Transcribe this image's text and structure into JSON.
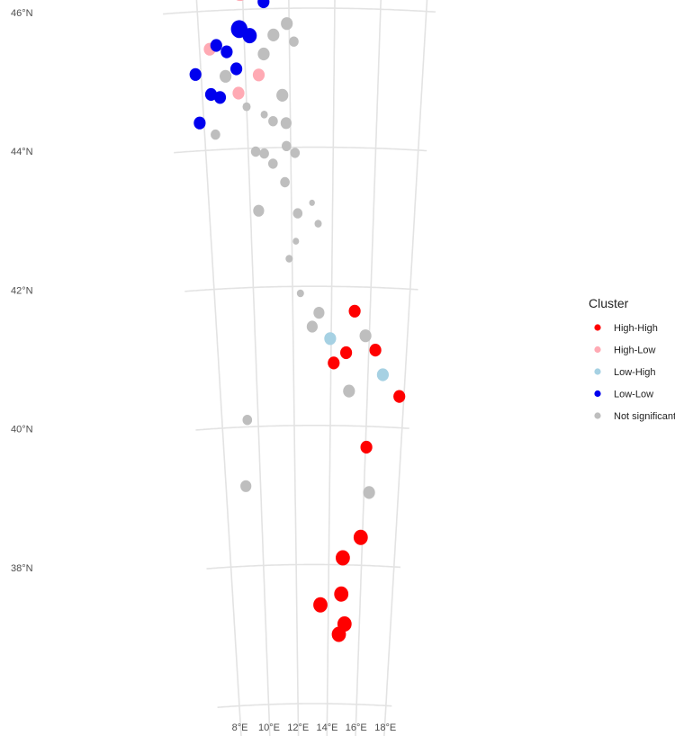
{
  "legend": {
    "title": "Cluster",
    "items": [
      {
        "label": "High-High",
        "color": "#ff0000"
      },
      {
        "label": "High-Low",
        "color": "#ffaab4"
      },
      {
        "label": "Low-High",
        "color": "#a6d1e3"
      },
      {
        "label": "Low-Low",
        "color": "#0000ee"
      },
      {
        "label": "Not significant",
        "color": "#bebebe"
      }
    ]
  },
  "axes": {
    "lon_ticks": [
      {
        "value": 8,
        "label": "8°E"
      },
      {
        "value": 10,
        "label": "10°E"
      },
      {
        "value": 12,
        "label": "12°E"
      },
      {
        "value": 14,
        "label": "14°E"
      },
      {
        "value": 16,
        "label": "16°E"
      },
      {
        "value": 18,
        "label": "18°E"
      }
    ],
    "lat_ticks": [
      {
        "value": 46,
        "label": "46°N"
      },
      {
        "value": 44,
        "label": "44°N"
      },
      {
        "value": 42,
        "label": "42°N"
      },
      {
        "value": 40,
        "label": "40°N"
      },
      {
        "value": 38,
        "label": "38°N"
      }
    ]
  },
  "chart_data": {
    "type": "scatter",
    "xlabel": "",
    "ylabel": "",
    "grid": true,
    "legend_position": "right",
    "points": [
      {
        "lon": 9.9,
        "lat": 46.25,
        "cluster": "High-Low",
        "size": 3
      },
      {
        "lon": 8.45,
        "lat": 45.45,
        "cluster": "High-Low",
        "size": 2
      },
      {
        "lon": 10.6,
        "lat": 45.05,
        "cluster": "High-Low",
        "size": 2
      },
      {
        "lon": 9.65,
        "lat": 44.8,
        "cluster": "High-Low",
        "size": 2
      },
      {
        "lon": 10.9,
        "lat": 46.1,
        "cluster": "Low-Low",
        "size": 2
      },
      {
        "lon": 9.8,
        "lat": 45.72,
        "cluster": "Low-Low",
        "size": 3
      },
      {
        "lon": 10.25,
        "lat": 45.62,
        "cluster": "Low-Low",
        "size": 2.5
      },
      {
        "lon": 8.75,
        "lat": 45.5,
        "cluster": "Low-Low",
        "size": 2
      },
      {
        "lon": 9.2,
        "lat": 45.4,
        "cluster": "Low-Low",
        "size": 2
      },
      {
        "lon": 9.6,
        "lat": 45.15,
        "cluster": "Low-Low",
        "size": 2
      },
      {
        "lon": 7.75,
        "lat": 45.1,
        "cluster": "Low-Low",
        "size": 2
      },
      {
        "lon": 8.4,
        "lat": 44.8,
        "cluster": "Low-Low",
        "size": 2
      },
      {
        "lon": 8.8,
        "lat": 44.75,
        "cluster": "Low-Low",
        "size": 2
      },
      {
        "lon": 7.8,
        "lat": 44.4,
        "cluster": "Low-Low",
        "size": 2
      },
      {
        "lon": 12.75,
        "lat": 46.25,
        "cluster": "Not significant",
        "size": 1.5
      },
      {
        "lon": 11.9,
        "lat": 45.78,
        "cluster": "Not significant",
        "size": 2
      },
      {
        "lon": 11.3,
        "lat": 45.62,
        "cluster": "Not significant",
        "size": 2
      },
      {
        "lon": 12.2,
        "lat": 45.52,
        "cluster": "Not significant",
        "size": 1.5
      },
      {
        "lon": 10.85,
        "lat": 45.35,
        "cluster": "Not significant",
        "size": 2
      },
      {
        "lon": 9.1,
        "lat": 45.05,
        "cluster": "Not significant",
        "size": 2
      },
      {
        "lon": 11.65,
        "lat": 44.75,
        "cluster": "Not significant",
        "size": 2
      },
      {
        "lon": 10.0,
        "lat": 44.6,
        "cluster": "Not significant",
        "size": 1.2
      },
      {
        "lon": 10.8,
        "lat": 44.48,
        "cluster": "Not significant",
        "size": 1
      },
      {
        "lon": 11.2,
        "lat": 44.38,
        "cluster": "Not significant",
        "size": 1.5
      },
      {
        "lon": 11.8,
        "lat": 44.35,
        "cluster": "Not significant",
        "size": 1.8
      },
      {
        "lon": 8.5,
        "lat": 44.22,
        "cluster": "Not significant",
        "size": 1.5
      },
      {
        "lon": 11.8,
        "lat": 44.02,
        "cluster": "Not significant",
        "size": 1.5
      },
      {
        "lon": 10.35,
        "lat": 43.95,
        "cluster": "Not significant",
        "size": 1.5
      },
      {
        "lon": 10.75,
        "lat": 43.92,
        "cluster": "Not significant",
        "size": 1.5
      },
      {
        "lon": 12.2,
        "lat": 43.92,
        "cluster": "Not significant",
        "size": 1.5
      },
      {
        "lon": 11.15,
        "lat": 43.77,
        "cluster": "Not significant",
        "size": 1.5
      },
      {
        "lon": 11.7,
        "lat": 43.5,
        "cluster": "Not significant",
        "size": 1.5
      },
      {
        "lon": 13.0,
        "lat": 43.2,
        "cluster": "Not significant",
        "size": 0.7
      },
      {
        "lon": 10.4,
        "lat": 43.1,
        "cluster": "Not significant",
        "size": 1.8
      },
      {
        "lon": 12.3,
        "lat": 43.05,
        "cluster": "Not significant",
        "size": 1.5
      },
      {
        "lon": 13.3,
        "lat": 42.9,
        "cluster": "Not significant",
        "size": 1
      },
      {
        "lon": 12.2,
        "lat": 42.65,
        "cluster": "Not significant",
        "size": 0.8
      },
      {
        "lon": 11.85,
        "lat": 42.4,
        "cluster": "Not significant",
        "size": 1
      },
      {
        "lon": 12.4,
        "lat": 41.9,
        "cluster": "Not significant",
        "size": 1
      },
      {
        "lon": 13.35,
        "lat": 41.62,
        "cluster": "Not significant",
        "size": 1.8
      },
      {
        "lon": 13.0,
        "lat": 41.42,
        "cluster": "Not significant",
        "size": 1.8
      },
      {
        "lon": 15.8,
        "lat": 41.3,
        "cluster": "Not significant",
        "size": 2
      },
      {
        "lon": 15.0,
        "lat": 40.5,
        "cluster": "Not significant",
        "size": 2
      },
      {
        "lon": 9.4,
        "lat": 40.1,
        "cluster": "Not significant",
        "size": 1.5
      },
      {
        "lon": 9.15,
        "lat": 39.15,
        "cluster": "Not significant",
        "size": 1.8
      },
      {
        "lon": 16.3,
        "lat": 39.05,
        "cluster": "Not significant",
        "size": 2
      },
      {
        "lon": 13.95,
        "lat": 41.25,
        "cluster": "Low-High",
        "size": 2
      },
      {
        "lon": 16.8,
        "lat": 40.75,
        "cluster": "Low-High",
        "size": 2
      },
      {
        "lon": 15.2,
        "lat": 41.65,
        "cluster": "High-High",
        "size": 2
      },
      {
        "lon": 16.35,
        "lat": 41.1,
        "cluster": "High-High",
        "size": 2
      },
      {
        "lon": 14.8,
        "lat": 41.05,
        "cluster": "High-High",
        "size": 2
      },
      {
        "lon": 14.15,
        "lat": 40.9,
        "cluster": "High-High",
        "size": 2
      },
      {
        "lon": 17.75,
        "lat": 40.45,
        "cluster": "High-High",
        "size": 2
      },
      {
        "lon": 16.05,
        "lat": 39.7,
        "cluster": "High-High",
        "size": 2
      },
      {
        "lon": 15.9,
        "lat": 38.4,
        "cluster": "High-High",
        "size": 2.5
      },
      {
        "lon": 14.85,
        "lat": 38.1,
        "cluster": "High-High",
        "size": 2.5
      },
      {
        "lon": 14.8,
        "lat": 37.58,
        "cluster": "High-High",
        "size": 2.5
      },
      {
        "lon": 13.5,
        "lat": 37.42,
        "cluster": "High-High",
        "size": 2.5
      },
      {
        "lon": 15.05,
        "lat": 37.15,
        "cluster": "High-High",
        "size": 2.5
      },
      {
        "lon": 14.7,
        "lat": 37.0,
        "cluster": "High-High",
        "size": 2.5
      }
    ]
  }
}
